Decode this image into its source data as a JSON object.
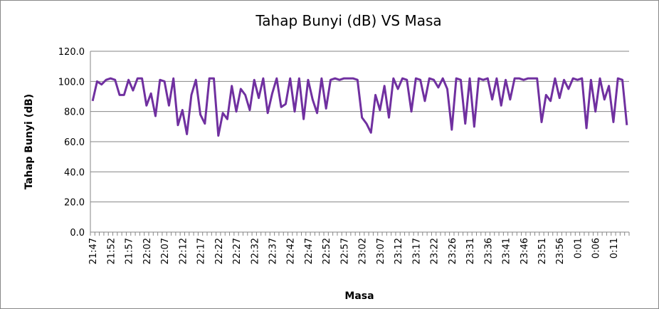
{
  "chart_data": {
    "type": "line",
    "title": "Tahap Bunyi (dB) VS Masa",
    "x_label": "Masa",
    "y_label": "Tahap Bunyi (dB)",
    "categories": [
      "21:47",
      null,
      null,
      null,
      "21:52",
      null,
      null,
      null,
      "21:57",
      null,
      null,
      null,
      "22:02",
      null,
      null,
      null,
      "22:07",
      null,
      null,
      null,
      "22:12",
      null,
      null,
      null,
      "22:17",
      null,
      null,
      null,
      "22:22",
      null,
      null,
      null,
      "22:27",
      null,
      null,
      null,
      "22:32",
      null,
      null,
      null,
      "22:37",
      null,
      null,
      null,
      "22:42",
      null,
      null,
      null,
      "22:47",
      null,
      null,
      null,
      "22:52",
      null,
      null,
      null,
      "22:57",
      null,
      null,
      null,
      "23:02",
      null,
      null,
      null,
      "23:07",
      null,
      null,
      null,
      "23:12",
      null,
      null,
      null,
      "23:17",
      null,
      null,
      null,
      "23:22",
      null,
      null,
      null,
      "23:26",
      null,
      null,
      null,
      "23:31",
      null,
      null,
      null,
      "23:36",
      null,
      null,
      null,
      "23:41",
      null,
      null,
      null,
      "23:46",
      null,
      null,
      null,
      "23:51",
      null,
      null,
      null,
      "23:56",
      null,
      null,
      null,
      "0:01",
      null,
      null,
      null,
      "0:06",
      null,
      null,
      null,
      "0:11",
      null,
      null,
      null
    ],
    "series": [
      {
        "name": "Tahap Bunyi (dB)",
        "color": "#7030a0",
        "values": [
          87,
          100,
          98,
          101,
          102,
          101,
          91,
          91,
          101,
          94,
          102,
          102,
          84,
          92,
          77,
          101,
          100,
          84,
          102,
          71,
          81,
          65,
          91,
          101,
          78,
          72,
          102,
          102,
          64,
          79,
          75,
          97,
          80,
          95,
          91,
          81,
          101,
          89,
          102,
          79,
          92,
          102,
          83,
          85,
          102,
          80,
          102,
          75,
          101,
          88,
          79,
          102,
          82,
          101,
          102,
          101,
          102,
          102,
          102,
          101,
          76,
          72,
          66,
          91,
          81,
          97,
          76,
          102,
          95,
          102,
          101,
          80,
          102,
          101,
          87,
          102,
          101,
          96,
          102,
          95,
          68,
          102,
          101,
          72,
          102,
          70,
          102,
          101,
          102,
          88,
          102,
          84,
          101,
          88,
          102,
          102,
          101,
          102,
          102,
          102,
          73,
          91,
          87,
          102,
          89,
          101,
          95,
          102,
          101,
          102,
          69,
          101,
          80,
          102,
          88,
          97,
          73,
          102,
          101,
          71
        ]
      }
    ],
    "ylim": [
      0,
      120
    ],
    "yticks": [
      {
        "value": 0,
        "label": "0.0"
      },
      {
        "value": 20,
        "label": "20.0"
      },
      {
        "value": 40,
        "label": "40.0"
      },
      {
        "value": 60,
        "label": "60.0"
      },
      {
        "value": 80,
        "label": "80.0"
      },
      {
        "value": 100,
        "label": "100.0"
      },
      {
        "value": 120,
        "label": "120.0"
      }
    ],
    "grid": true
  }
}
